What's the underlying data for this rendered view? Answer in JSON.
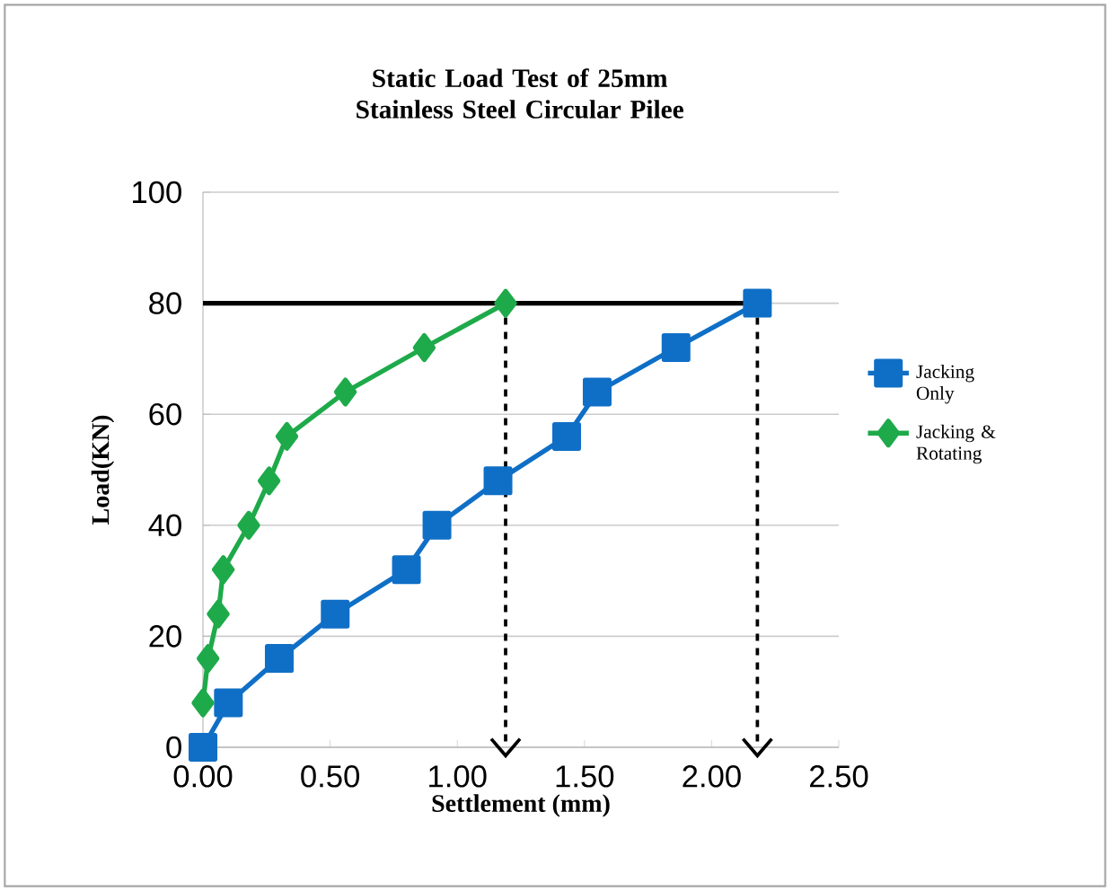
{
  "chart_data": {
    "type": "line",
    "title": "Static Load Test of  25mm Stainless Steel Circular Pilee",
    "xlabel": "Settlement (mm)",
    "ylabel": "Load(KN)",
    "xlim": [
      0,
      2.5
    ],
    "ylim": [
      0,
      100
    ],
    "xticks": [
      {
        "value": 0,
        "label": "0.00"
      },
      {
        "value": 0.5,
        "label": "0.50"
      },
      {
        "value": 1,
        "label": "1.00"
      },
      {
        "value": 1.5,
        "label": "1.50"
      },
      {
        "value": 2,
        "label": "2.00"
      },
      {
        "value": 2.5,
        "label": "2.50"
      }
    ],
    "yticks": [
      0,
      20,
      40,
      60,
      80,
      100
    ],
    "grid": "y",
    "legend": "right",
    "series": [
      {
        "name": "Jacking Only",
        "color": "#0f6fc6",
        "marker": "square",
        "x": [
          0,
          0.1,
          0.3,
          0.52,
          0.8,
          0.92,
          1.16,
          1.43,
          1.55,
          1.86,
          2.18
        ],
        "values": [
          0,
          8,
          16,
          24,
          32,
          40,
          48,
          56,
          64,
          72,
          80
        ]
      },
      {
        "name": "Jacking & Rotating",
        "color": "#1eaa4a",
        "marker": "diamond",
        "x": [
          0,
          0.02,
          0.06,
          0.08,
          0.18,
          0.26,
          0.33,
          0.56,
          0.87,
          1.19
        ],
        "values": [
          8,
          16,
          24,
          32,
          40,
          48,
          56,
          64,
          72,
          80
        ]
      },
      {
        "color": "#000000",
        "marker": "none",
        "line_style": "solid",
        "x": [
          0,
          2.18
        ],
        "values": [
          80,
          80
        ]
      },
      {
        "color": "#000000",
        "line_style": "dashed",
        "x": [
          1.19,
          1.19
        ],
        "values": [
          80,
          0
        ]
      },
      {
        "color": "#000000",
        "line_style": "dashed",
        "x": [
          2.18,
          2.18
        ],
        "values": [
          80,
          0
        ]
      }
    ]
  }
}
